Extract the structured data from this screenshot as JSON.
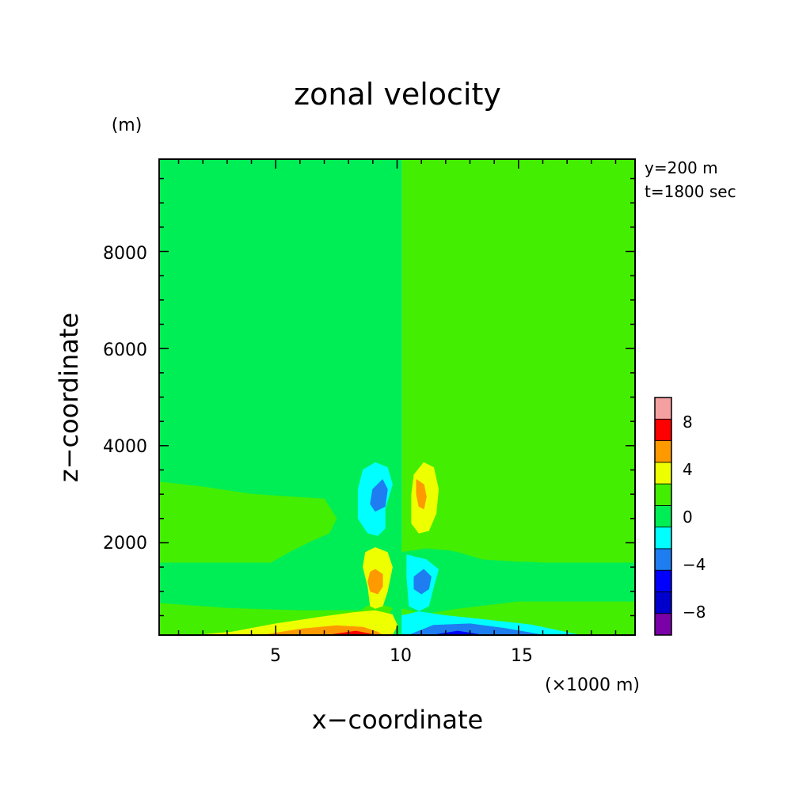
{
  "chart_data": {
    "type": "heatmap",
    "title": "zonal velocity",
    "xlabel": "x−coordinate",
    "ylabel": "z−coordinate",
    "x_unit": "(×1000 m)",
    "y_unit": "(m)",
    "annotations": [
      "y=200 m",
      "t=1800 sec"
    ],
    "xlim": [
      0.2,
      19.8
    ],
    "ylim": [
      100,
      9900
    ],
    "x_ticks": [
      5,
      10,
      15
    ],
    "x_tick_labels": [
      "5",
      "10",
      "15"
    ],
    "y_ticks": [
      2000,
      4000,
      6000,
      8000
    ],
    "y_tick_labels": [
      "2000",
      "4000",
      "6000",
      "8000"
    ],
    "colorbar": {
      "levels": [
        -10,
        -8,
        -6,
        -4,
        -2,
        0,
        2,
        4,
        6,
        8,
        10
      ],
      "tick_labels": [
        "−8",
        "−4",
        "0",
        "4",
        "8"
      ],
      "tick_values": [
        -8,
        -4,
        0,
        4,
        8
      ],
      "colors": [
        "#7a00a8",
        "#0000cc",
        "#0000ff",
        "#1e7df0",
        "#00ffff",
        "#00ee55",
        "#44ee00",
        "#eeff00",
        "#ff9900",
        "#ff0000",
        "#f5a0a0"
      ]
    },
    "background_fill": {
      "left_half": "#00ee55",
      "right_half": "#44ee00",
      "split_x": 10.2
    },
    "regions": [
      {
        "label": "0 to 2",
        "color": "#44ee00",
        "points": [
          [
            0.2,
            3250
          ],
          [
            2,
            3150
          ],
          [
            4,
            3000
          ],
          [
            7,
            2900
          ],
          [
            7.5,
            2500
          ],
          [
            7.2,
            2200
          ],
          [
            6.5,
            2050
          ],
          [
            5.5,
            1800
          ],
          [
            4.8,
            1600
          ],
          [
            0.2,
            1600
          ]
        ]
      },
      {
        "label": "0 to 2",
        "color": "#44ee00",
        "points": [
          [
            0.2,
            750
          ],
          [
            3,
            650
          ],
          [
            6,
            600
          ],
          [
            8.5,
            600
          ],
          [
            8.8,
            700
          ],
          [
            9.5,
            700
          ],
          [
            9.8,
            650
          ],
          [
            9.5,
            400
          ],
          [
            9,
            300
          ],
          [
            7,
            150
          ],
          [
            4,
            100
          ],
          [
            0.2,
            100
          ]
        ]
      },
      {
        "label": "-2 to 0",
        "color": "#00ee55",
        "points": [
          [
            10.2,
            1800
          ],
          [
            11.5,
            1900
          ],
          [
            12.5,
            1800
          ],
          [
            13.5,
            1650
          ],
          [
            15,
            1600
          ],
          [
            19.8,
            1600
          ],
          [
            19.8,
            800
          ],
          [
            15,
            800
          ],
          [
            12.5,
            650
          ],
          [
            11.2,
            550
          ],
          [
            10.2,
            650
          ]
        ]
      },
      {
        "label": "2 to 4",
        "color": "#eeff00",
        "points": [
          [
            1.8,
            100
          ],
          [
            3.2,
            160
          ],
          [
            5,
            330
          ],
          [
            7,
            480
          ],
          [
            8.2,
            560
          ],
          [
            9.1,
            600
          ],
          [
            9.8,
            520
          ],
          [
            10,
            300
          ],
          [
            9.8,
            100
          ]
        ]
      },
      {
        "label": "4 to 6",
        "color": "#ff9900",
        "points": [
          [
            4.5,
            100
          ],
          [
            6,
            220
          ],
          [
            7.5,
            290
          ],
          [
            8.6,
            260
          ],
          [
            9.2,
            160
          ],
          [
            9.4,
            100
          ]
        ]
      },
      {
        "label": "6 to 8",
        "color": "#ff0000",
        "points": [
          [
            7.2,
            100
          ],
          [
            8.3,
            180
          ],
          [
            9.1,
            100
          ]
        ]
      },
      {
        "label": "-2 to -4",
        "color": "#00ffff",
        "points": [
          [
            10.2,
            100
          ],
          [
            10.2,
            500
          ],
          [
            10.9,
            580
          ],
          [
            12,
            500
          ],
          [
            13.5,
            420
          ],
          [
            15.5,
            310
          ],
          [
            17.5,
            100
          ]
        ]
      },
      {
        "label": "-4 to -6",
        "color": "#1e7df0",
        "points": [
          [
            10.5,
            100
          ],
          [
            11.5,
            300
          ],
          [
            13,
            330
          ],
          [
            14.5,
            230
          ],
          [
            16,
            100
          ]
        ]
      },
      {
        "label": "-6 to -8",
        "color": "#0000ff",
        "points": [
          [
            11.5,
            100
          ],
          [
            12.5,
            180
          ],
          [
            13.5,
            100
          ]
        ]
      },
      {
        "label": "2 to 4",
        "color": "#eeff00",
        "points": [
          [
            9.1,
            1900
          ],
          [
            9.6,
            1800
          ],
          [
            9.8,
            1500
          ],
          [
            9.6,
            1000
          ],
          [
            9.4,
            700
          ],
          [
            9.1,
            650
          ],
          [
            8.9,
            700
          ],
          [
            8.8,
            1100
          ],
          [
            8.6,
            1500
          ],
          [
            8.7,
            1800
          ]
        ]
      },
      {
        "label": "4 to 6",
        "color": "#ff9900",
        "points": [
          [
            9.1,
            1450
          ],
          [
            9.4,
            1350
          ],
          [
            9.4,
            1100
          ],
          [
            9.2,
            950
          ],
          [
            8.9,
            1000
          ],
          [
            8.8,
            1200
          ],
          [
            8.9,
            1400
          ]
        ]
      },
      {
        "label": "-2 to -4",
        "color": "#00ffff",
        "points": [
          [
            10.4,
            1750
          ],
          [
            11.2,
            1650
          ],
          [
            11.7,
            1450
          ],
          [
            11.5,
            1100
          ],
          [
            11.3,
            700
          ],
          [
            10.9,
            600
          ],
          [
            10.5,
            700
          ],
          [
            10.4,
            1300
          ]
        ]
      },
      {
        "label": "-4 to -6",
        "color": "#1e7df0",
        "points": [
          [
            11.1,
            1450
          ],
          [
            11.4,
            1300
          ],
          [
            11.3,
            1050
          ],
          [
            11,
            950
          ],
          [
            10.7,
            1050
          ],
          [
            10.7,
            1300
          ]
        ]
      },
      {
        "label": "-2 to -4",
        "color": "#00ffff",
        "points": [
          [
            9.1,
            3650
          ],
          [
            9.6,
            3550
          ],
          [
            9.8,
            3200
          ],
          [
            9.5,
            2700
          ],
          [
            9.5,
            2300
          ],
          [
            9.2,
            2150
          ],
          [
            8.8,
            2200
          ],
          [
            8.4,
            2500
          ],
          [
            8.4,
            3100
          ],
          [
            8.6,
            3500
          ]
        ]
      },
      {
        "label": "-4 to -6",
        "color": "#1e7df0",
        "points": [
          [
            9.4,
            3300
          ],
          [
            9.6,
            3100
          ],
          [
            9.5,
            2750
          ],
          [
            9.1,
            2650
          ],
          [
            8.9,
            2800
          ],
          [
            9.0,
            3100
          ]
        ]
      },
      {
        "label": "0 to 2",
        "color": "#44ee00",
        "points": [
          [
            10.2,
            2000
          ],
          [
            11,
            2200
          ],
          [
            11.5,
            2250
          ],
          [
            12,
            2450
          ],
          [
            12.6,
            2600
          ],
          [
            13.5,
            2700
          ],
          [
            13.8,
            3000
          ],
          [
            16.5,
            3100
          ],
          [
            19.8,
            3200
          ],
          [
            19.8,
            1600
          ],
          [
            16,
            1600
          ],
          [
            14.2,
            1650
          ],
          [
            13.2,
            1750
          ],
          [
            12.2,
            1850
          ],
          [
            11,
            1900
          ],
          [
            10.2,
            1850
          ]
        ]
      },
      {
        "label": "2 to 4",
        "color": "#eeff00",
        "points": [
          [
            11.1,
            3650
          ],
          [
            11.5,
            3550
          ],
          [
            11.7,
            3100
          ],
          [
            11.6,
            2600
          ],
          [
            11.3,
            2250
          ],
          [
            10.9,
            2200
          ],
          [
            10.6,
            2400
          ],
          [
            10.6,
            3000
          ],
          [
            10.7,
            3400
          ]
        ]
      },
      {
        "label": "4 to 6",
        "color": "#ff9900",
        "points": [
          [
            10.8,
            3300
          ],
          [
            11.1,
            3200
          ],
          [
            11.2,
            2950
          ],
          [
            11.1,
            2700
          ],
          [
            10.9,
            2750
          ],
          [
            10.8,
            3000
          ]
        ]
      }
    ]
  }
}
